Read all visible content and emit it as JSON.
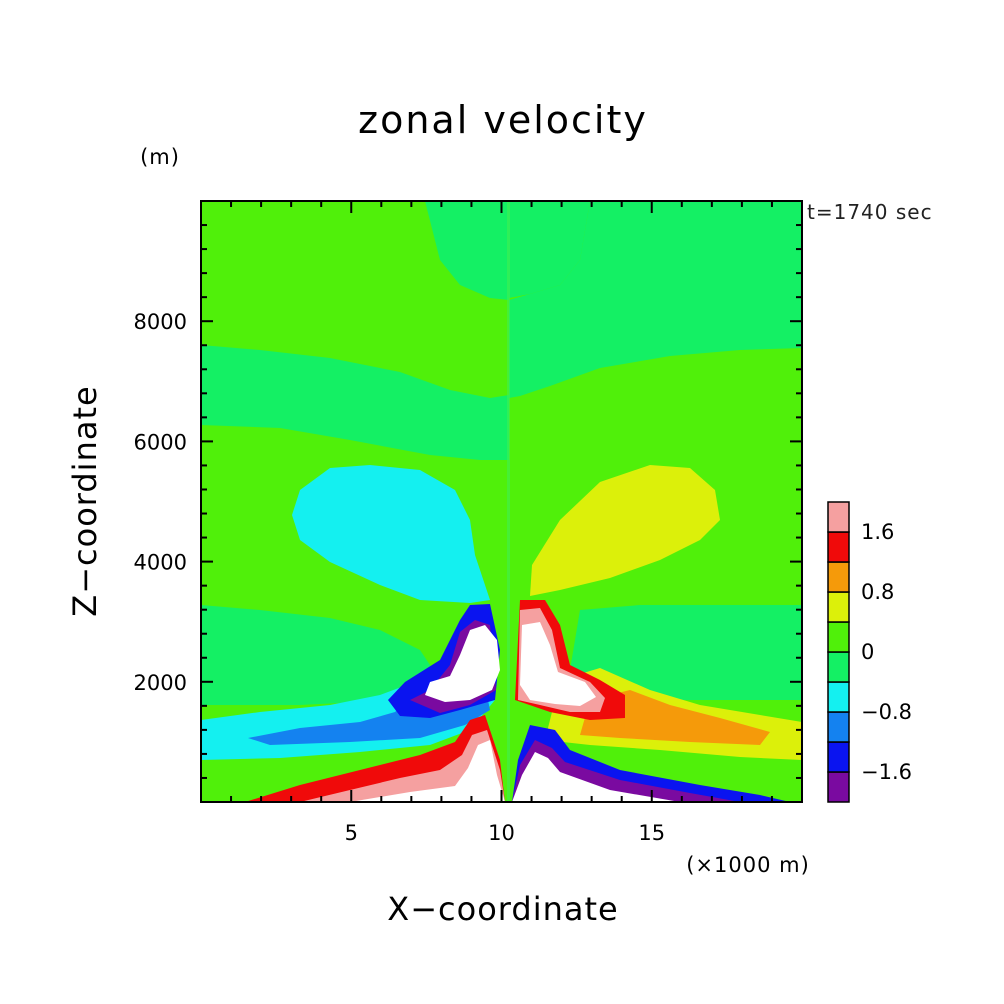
{
  "chart_data": {
    "type": "heatmap",
    "title": "zonal velocity",
    "xlabel": "X−coordinate",
    "ylabel": "Z−coordinate",
    "x_unit": "(×1000 m)",
    "y_unit": "(m)",
    "time_label": "t=1740 sec",
    "xlim": [
      0,
      20
    ],
    "ylim": [
      0,
      10000
    ],
    "x_ticks": [
      5,
      10,
      15
    ],
    "y_ticks": [
      2000,
      4000,
      6000,
      8000
    ],
    "colorbar": {
      "levels": [
        -2.0,
        -1.6,
        -1.2,
        -0.8,
        -0.4,
        0,
        0.4,
        0.8,
        1.2,
        1.6,
        2.0
      ],
      "labels": [
        "-1.6",
        "-0.8",
        "0",
        "0.8",
        "1.6"
      ],
      "label_values": [
        -1.6,
        -0.8,
        0,
        0.8,
        1.6
      ],
      "colors": [
        "#7a0aa0",
        "#0a14f0",
        "#1482f0",
        "#14f0f0",
        "#14f064",
        "#50f00a",
        "#dcf00a",
        "#f59a0a",
        "#f00a0a",
        "#f5a0a0"
      ]
    },
    "features": [
      {
        "name": "negative-lobe-upper-left",
        "value": -0.6,
        "x_center": 6.2,
        "z_center": 4800
      },
      {
        "name": "positive-lobe-upper-right",
        "value": 0.6,
        "x_center": 13.8,
        "z_center": 4800
      },
      {
        "name": "strong-positive-core-left",
        "value": 2.2,
        "x_center": 9.0,
        "z_center": 400
      },
      {
        "name": "strong-negative-core-right",
        "value": -2.2,
        "x_center": 11.0,
        "z_center": 400
      },
      {
        "name": "negative-jet-left",
        "value": -1.0,
        "x_center": 4.5,
        "z_center": 1150
      },
      {
        "name": "positive-jet-right",
        "value": 1.0,
        "x_center": 15.5,
        "z_center": 1150
      }
    ]
  }
}
